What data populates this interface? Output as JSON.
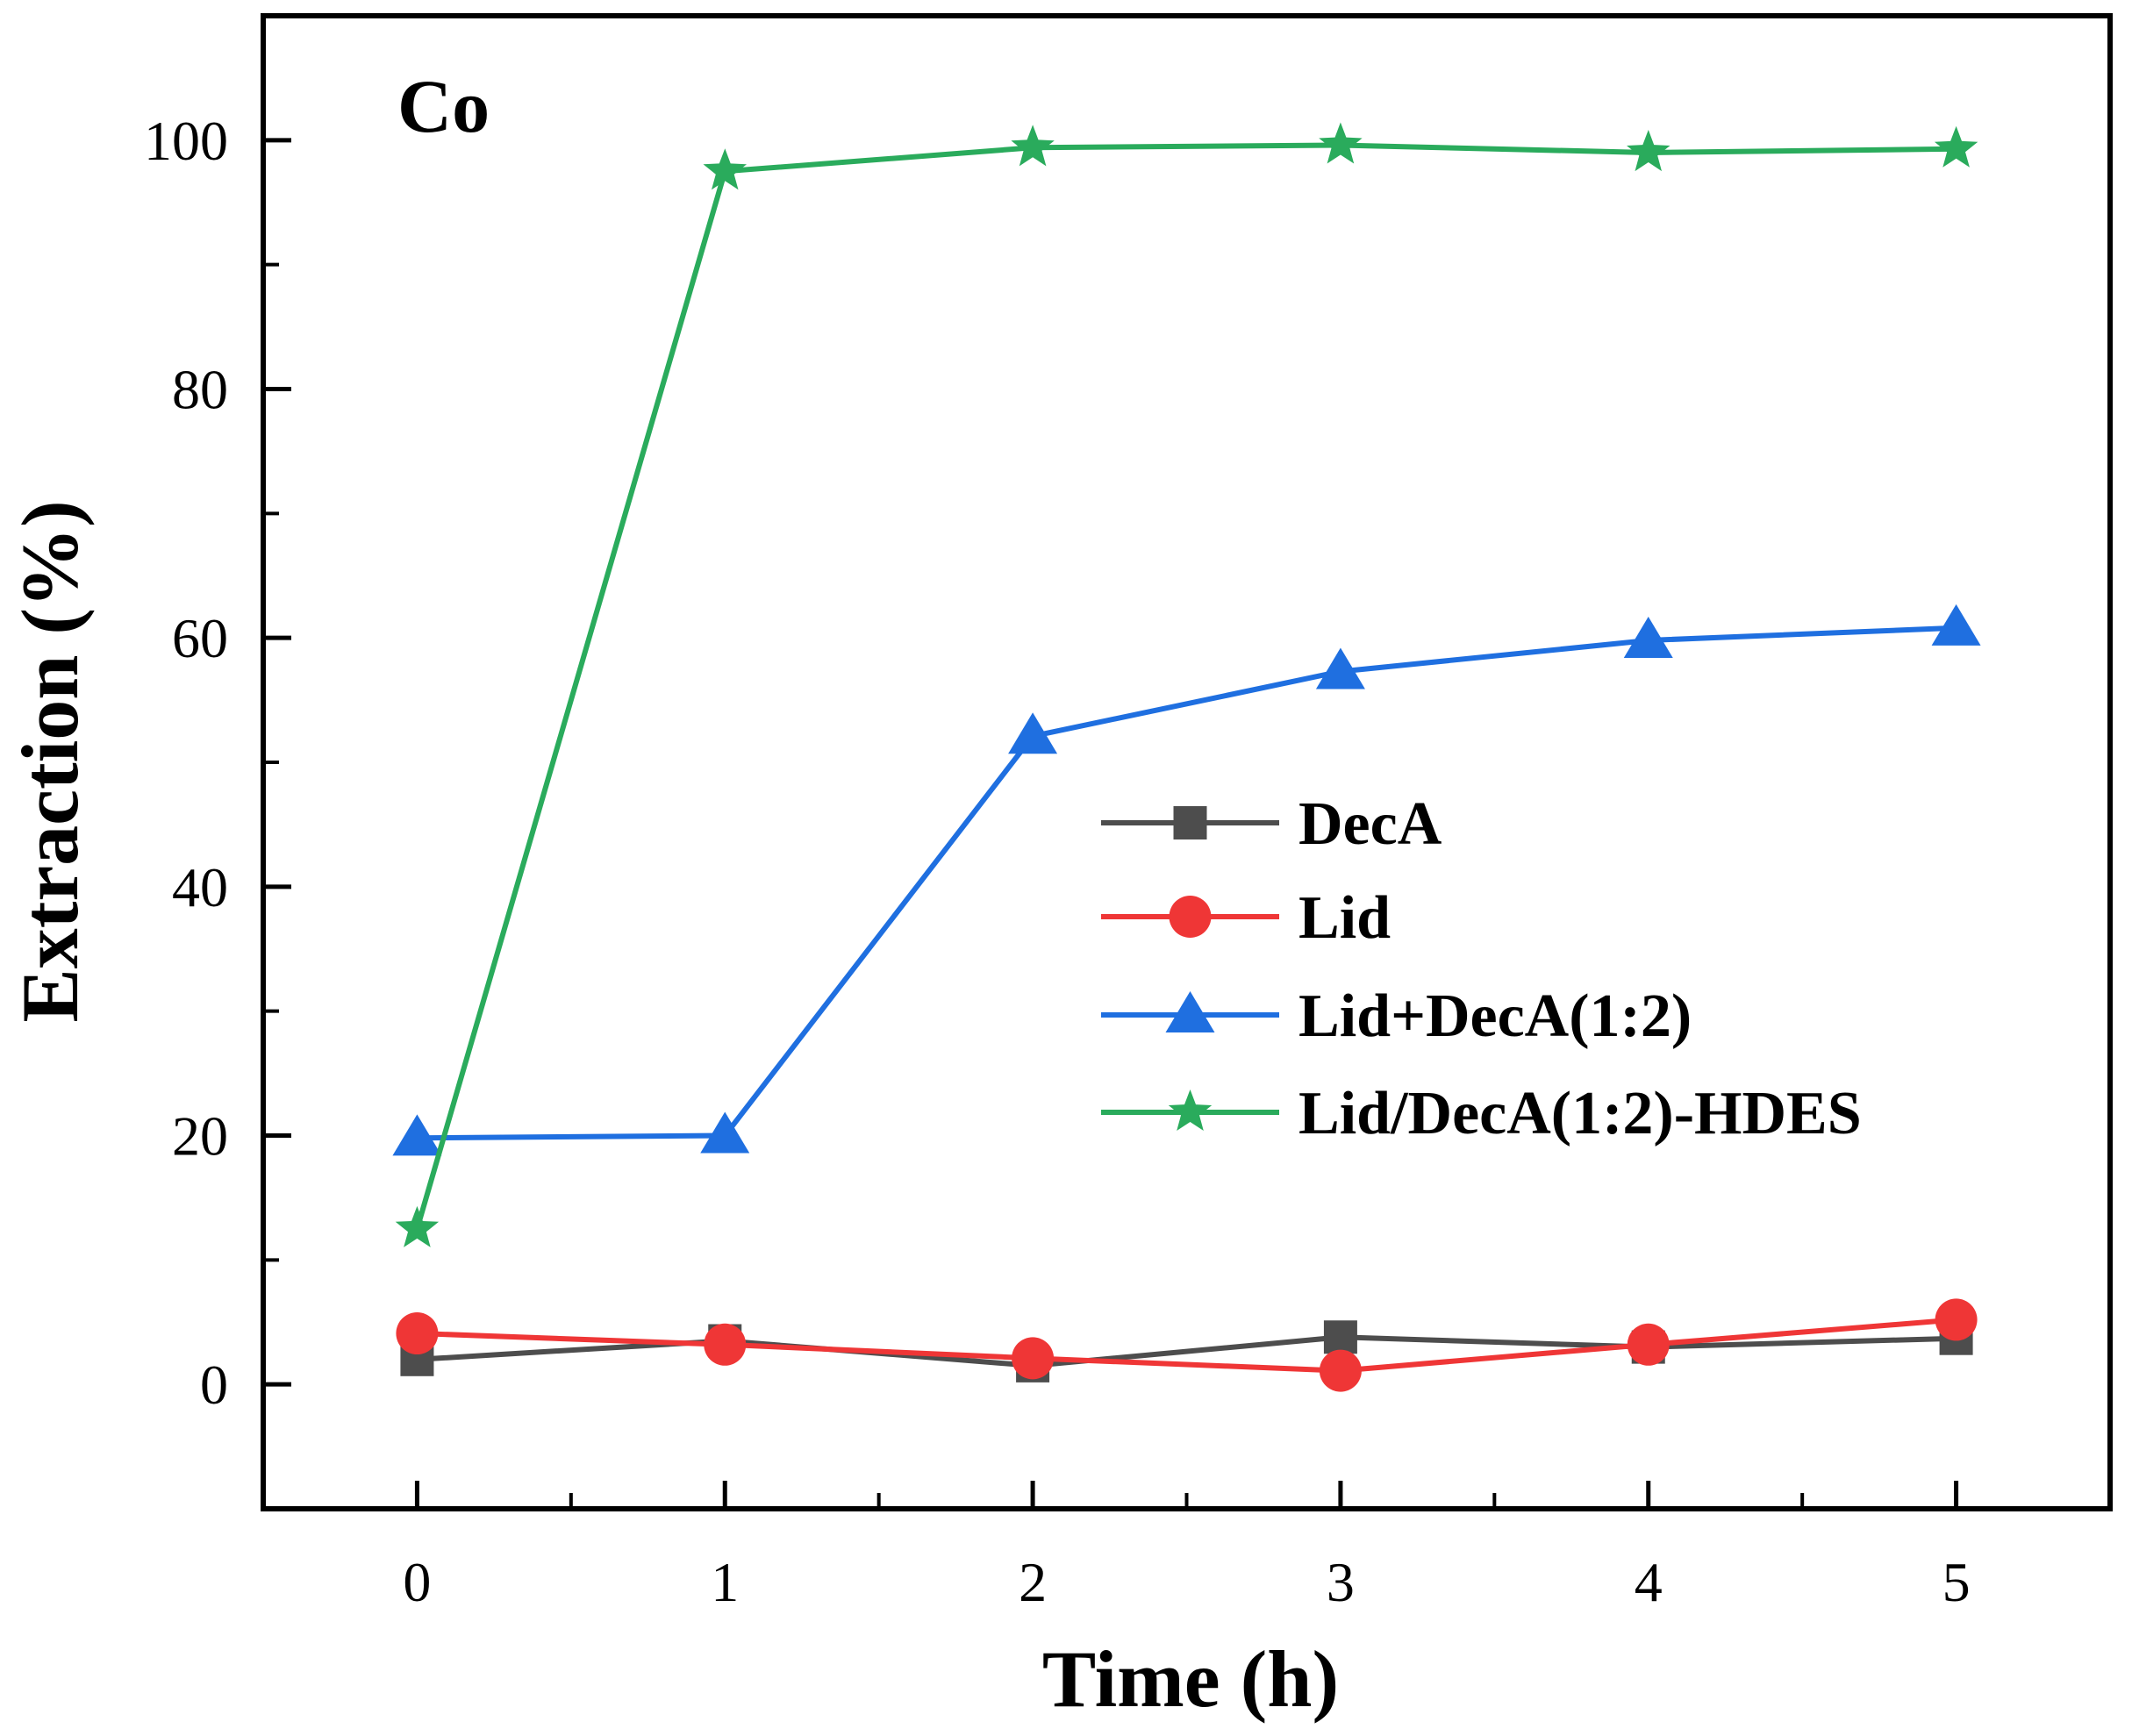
{
  "chart_data": {
    "type": "line",
    "title": "",
    "panel_label": "Co",
    "xlabel": "Time (h)",
    "ylabel": "Extraction (%)",
    "x": [
      0,
      1,
      2,
      3,
      4,
      5
    ],
    "xlim": [
      -0.5,
      5.5
    ],
    "ylim": [
      -10,
      110
    ],
    "xticks": [
      "0",
      "1",
      "2",
      "3",
      "4",
      "5"
    ],
    "yticks": [
      "0",
      "20",
      "40",
      "60",
      "80",
      "100"
    ],
    "grid": false,
    "legend_position": "center-right",
    "series": [
      {
        "name": "DecA",
        "color": "#4d4d4d",
        "marker": "square",
        "values": [
          2.0,
          3.5,
          1.5,
          3.8,
          3.0,
          3.7
        ]
      },
      {
        "name": "Lid",
        "color": "#ef3636",
        "marker": "circle",
        "values": [
          4.1,
          3.2,
          2.1,
          1.1,
          3.2,
          5.2
        ]
      },
      {
        "name": "Lid+DecA(1:2)",
        "color": "#1f6fe0",
        "marker": "triangle",
        "values": [
          19.8,
          20.0,
          52.1,
          57.3,
          59.8,
          60.8
        ]
      },
      {
        "name": "Lid/DecA(1:2)-HDES",
        "color": "#2aab5c",
        "marker": "star",
        "values": [
          12.5,
          97.5,
          99.4,
          99.6,
          99.0,
          99.3
        ]
      }
    ]
  }
}
